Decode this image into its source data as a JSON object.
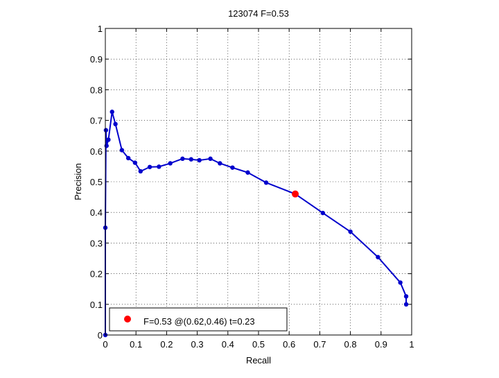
{
  "chart_data": {
    "type": "line",
    "title": "123074 F=0.53",
    "xlabel": "Recall",
    "ylabel": "Precision",
    "xlim": [
      0,
      1
    ],
    "ylim": [
      0,
      1
    ],
    "xticks": [
      "0",
      "0.1",
      "0.2",
      "0.3",
      "0.4",
      "0.5",
      "0.6",
      "0.7",
      "0.8",
      "0.9",
      "1"
    ],
    "yticks": [
      "0",
      "0.1",
      "0.2",
      "0.3",
      "0.4",
      "0.5",
      "0.6",
      "0.7",
      "0.8",
      "0.9",
      "1"
    ],
    "grid": true,
    "legend_position": "bottom-left",
    "series": [
      {
        "color": "#0000cc",
        "marker": "dot",
        "points": [
          {
            "x": 0.0,
            "y": 0.0
          },
          {
            "x": 0.0,
            "y": 0.35
          },
          {
            "x": 0.002,
            "y": 0.668
          },
          {
            "x": 0.004,
            "y": 0.617
          },
          {
            "x": 0.01,
            "y": 0.637
          },
          {
            "x": 0.022,
            "y": 0.728
          },
          {
            "x": 0.033,
            "y": 0.688
          },
          {
            "x": 0.054,
            "y": 0.603
          },
          {
            "x": 0.075,
            "y": 0.577
          },
          {
            "x": 0.097,
            "y": 0.562
          },
          {
            "x": 0.115,
            "y": 0.534
          },
          {
            "x": 0.145,
            "y": 0.548
          },
          {
            "x": 0.175,
            "y": 0.549
          },
          {
            "x": 0.212,
            "y": 0.56
          },
          {
            "x": 0.252,
            "y": 0.575
          },
          {
            "x": 0.28,
            "y": 0.573
          },
          {
            "x": 0.307,
            "y": 0.57
          },
          {
            "x": 0.343,
            "y": 0.575
          },
          {
            "x": 0.374,
            "y": 0.56
          },
          {
            "x": 0.415,
            "y": 0.546
          },
          {
            "x": 0.465,
            "y": 0.53
          },
          {
            "x": 0.525,
            "y": 0.497
          },
          {
            "x": 0.62,
            "y": 0.46
          },
          {
            "x": 0.71,
            "y": 0.398
          },
          {
            "x": 0.8,
            "y": 0.337
          },
          {
            "x": 0.89,
            "y": 0.254
          },
          {
            "x": 0.963,
            "y": 0.171
          },
          {
            "x": 0.982,
            "y": 0.126
          },
          {
            "x": 0.982,
            "y": 0.1
          }
        ]
      }
    ],
    "highlight": {
      "x": 0.62,
      "y": 0.46,
      "color": "#ff0000",
      "legend_label": "F=0.53 @(0.62,0.46) t=0.23"
    }
  }
}
